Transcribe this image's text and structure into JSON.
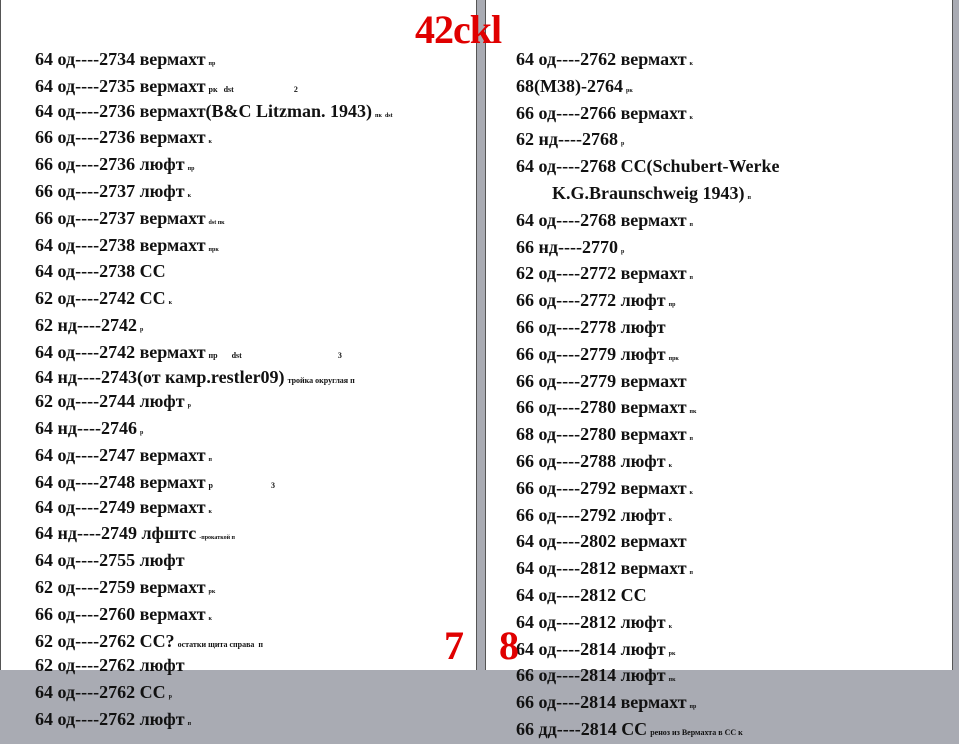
{
  "header": {
    "title": "42ckl"
  },
  "left_page": {
    "page_number": "7",
    "lines": [
      {
        "text": "64 од----2734 вермахт",
        "note": "пр"
      },
      {
        "text": "64 од----2735 вермахт",
        "note": "рк   dst                              2"
      },
      {
        "text": "64 од----2736 вермахт(B&C Litzman. 1943)",
        "note": "пк  dst"
      },
      {
        "text": "66 од----2736 вермахт",
        "note": "к"
      },
      {
        "text": "66 од----2736 люфт",
        "note": "пр"
      },
      {
        "text": "66 од----2737 люфт",
        "note": "к"
      },
      {
        "text": "66 од----2737 вермахт",
        "note": "dst пк"
      },
      {
        "text": "64 од----2738 вермахт",
        "note": "прк"
      },
      {
        "text": "64 од----2738 СС",
        "note": ""
      },
      {
        "text": "62 од----2742 СС",
        "note": "к"
      },
      {
        "text": "62 нд----2742",
        "note": "р"
      },
      {
        "text": "64 од----2742 вермахт",
        "note": "пр       dst                                                3"
      },
      {
        "text": "64 нд----2743(от камр.restler09)",
        "note": "тройка округлая п"
      },
      {
        "text": "62 од----2744 люфт",
        "note": "р"
      },
      {
        "text": "64 нд----2746",
        "note": "р"
      },
      {
        "text": "64 од----2747 вермахт",
        "note": "п"
      },
      {
        "text": "64 од----2748 вермахт",
        "note": "р                             3"
      },
      {
        "text": "64 од----2749 вермахт",
        "note": "к"
      },
      {
        "text": "64 нд----2749 лфштс",
        "note": "-прокаткой п"
      },
      {
        "text": "64 од----2755 люфт",
        "note": ""
      },
      {
        "text": "62 од----2759 вермахт",
        "note": "рк"
      },
      {
        "text": "66 од----2760 вермахт",
        "note": "к"
      },
      {
        "text": "62 од----2762 СС?",
        "note": "остатки щита справа  п"
      },
      {
        "text": "62 од----2762 люфт",
        "note": ""
      },
      {
        "text": "64 од----2762 СС",
        "note": "р"
      },
      {
        "text": "64 од----2762 люфт",
        "note": "п"
      }
    ]
  },
  "right_page": {
    "page_number": "8",
    "lines": [
      {
        "text": "64 од----2762 вермахт",
        "note": "к"
      },
      {
        "text": "68(M38)-2764",
        "note": "рк"
      },
      {
        "text": "66 од----2766 вермахт",
        "note": "к"
      },
      {
        "text": "62 нд----2768",
        "note": "р"
      },
      {
        "text": "64 од----2768 СС(Schubert-Werke",
        "note": ""
      },
      {
        "text": "K.G.Braunschweig 1943)",
        "note": "п",
        "indent": true
      },
      {
        "text": "64 од----2768 вермахт",
        "note": "п"
      },
      {
        "text": "66 нд----2770",
        "note": "р"
      },
      {
        "text": "62 од----2772 вермахт",
        "note": "п"
      },
      {
        "text": "66 од----2772 люфт",
        "note": "пр"
      },
      {
        "text": "66 од----2778 люфт",
        "note": ""
      },
      {
        "text": "66 од----2779 люфт",
        "note": "прк"
      },
      {
        "text": "66 од----2779 вермахт",
        "note": ""
      },
      {
        "text": "66 од----2780 вермахт",
        "note": "пк"
      },
      {
        "text": "68 од----2780 вермахт",
        "note": "п"
      },
      {
        "text": "66 од----2788 люфт",
        "note": "к"
      },
      {
        "text": "66 од----2792 вермахт",
        "note": "к"
      },
      {
        "text": "66 од----2792 люфт",
        "note": "к"
      },
      {
        "text": "64 од----2802 вермахт",
        "note": ""
      },
      {
        "text": "64 од----2812 вермахт",
        "note": "п"
      },
      {
        "text": "64 од----2812 СС",
        "note": ""
      },
      {
        "text": "64 од----2812 люфт",
        "note": "к"
      },
      {
        "text": "64 од----2814 люфт",
        "note": "рк"
      },
      {
        "text": "66 од----2814 люфт",
        "note": "пк"
      },
      {
        "text": "66 од----2814 вермахт",
        "note": "пр"
      },
      {
        "text": "66 дд----2814 СС",
        "note": "реноз из Вермахта в СС к"
      }
    ]
  }
}
